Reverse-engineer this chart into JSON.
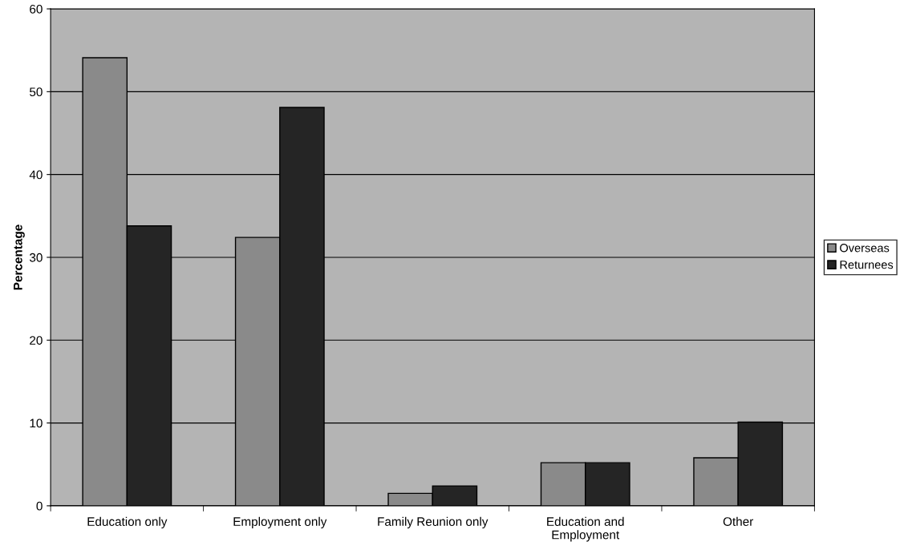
{
  "chart_data": {
    "type": "bar",
    "ylabel": "Percentage",
    "categories": [
      "Education only",
      "Employment only",
      "Family Reunion only",
      "Education and\nEmployment",
      "Other"
    ],
    "series": [
      {
        "name": "Overseas",
        "color": "#8a8a8a",
        "values": [
          54.1,
          32.4,
          1.5,
          5.2,
          5.8
        ]
      },
      {
        "name": "Returnees",
        "color": "#252525",
        "values": [
          33.8,
          48.1,
          2.4,
          5.2,
          10.1
        ]
      }
    ],
    "ylim": [
      0,
      60
    ],
    "yticks": [
      0,
      10,
      20,
      30,
      40,
      50,
      60
    ],
    "grid": "y",
    "legend": "right"
  }
}
